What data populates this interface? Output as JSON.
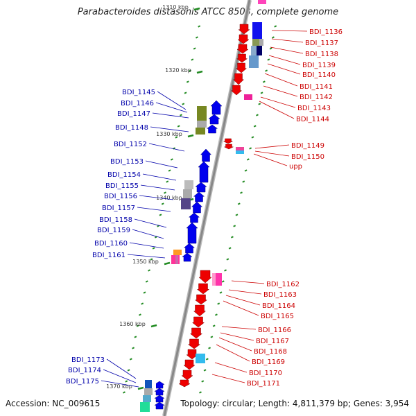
{
  "title": "Parabacteroides distasonis ATCC 8503, complete genome",
  "footer": {
    "accession": "Accession: NC_009615",
    "topology": "Topology: circular; Length: 4,811,379 bp; Genes: 3,954"
  },
  "colors": {
    "left_labels": "#0000aa",
    "right_labels": "#cc0000",
    "forward_genes": "#0000ee",
    "reverse_genes": "#ee0000",
    "backbone": "#888888",
    "ticks": "#228b22"
  },
  "scale_labels": [
    "1310 kbp",
    "1320 kbp",
    "1330 kbp",
    "1340 kbp",
    "1350 kbp",
    "1360 kbp",
    "1370 kbp"
  ],
  "left_genes": [
    "BDI_1145",
    "BDI_1146",
    "BDI_1147",
    "BDI_1148",
    "BDI_1152",
    "BDI_1153",
    "BDI_1154",
    "BDI_1155",
    "BDI_1156",
    "BDI_1157",
    "BDI_1158",
    "BDI_1159",
    "BDI_1160",
    "BDI_1161",
    "BDI_1173",
    "BDI_1174",
    "BDI_1175"
  ],
  "right_genes": [
    "BDI_1136",
    "BDI_1137",
    "BDI_1138",
    "BDI_1139",
    "BDI_1140",
    "BDI_1141",
    "BDI_1142",
    "BDI_1143",
    "BDI_1144",
    "BDI_1149",
    "BDI_1150",
    "upp",
    "BDI_1162",
    "BDI_1163",
    "BDI_1164",
    "BDI_1165",
    "BDI_1166",
    "BDI_1167",
    "BDI_1168",
    "BDI_1169",
    "BDI_1170",
    "BDI_1171"
  ]
}
